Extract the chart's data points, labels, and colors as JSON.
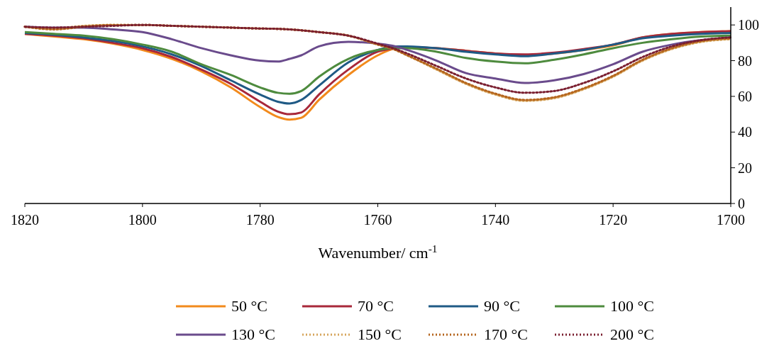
{
  "chart_data": {
    "type": "line",
    "xlabel": "Wavenumber/ cm$^{-1}$",
    "xlim": [
      1820,
      1700
    ],
    "xticks": [
      1820,
      1800,
      1780,
      1760,
      1740,
      1720,
      1700
    ],
    "ylim": [
      0,
      110
    ],
    "yticks": [
      0,
      20,
      40,
      60,
      80,
      100
    ],
    "grid": false,
    "legend": "bottom",
    "x": [
      1820,
      1815,
      1810,
      1805,
      1800,
      1795,
      1790,
      1785,
      1780,
      1777,
      1775,
      1773,
      1770,
      1765,
      1760,
      1757,
      1755,
      1750,
      1745,
      1740,
      1735,
      1730,
      1725,
      1720,
      1715,
      1710,
      1705,
      1700
    ],
    "series": [
      {
        "name": "50 °C",
        "color": "#f28a1c",
        "line_style": "solid",
        "values": [
          95,
          93.5,
          92,
          89.5,
          86,
          81,
          74,
          65,
          54,
          48.5,
          47,
          48,
          58,
          72,
          83,
          87,
          87.5,
          87,
          85.5,
          84,
          83,
          84,
          86,
          88.5,
          93,
          95,
          96,
          96.5
        ]
      },
      {
        "name": "70 °C",
        "color": "#a8283a",
        "line_style": "solid",
        "values": [
          95,
          94,
          92.5,
          90,
          87,
          82,
          75,
          67,
          57,
          51.5,
          50,
          51,
          61,
          75,
          85,
          87,
          87.5,
          87,
          85.5,
          84,
          83.5,
          84.5,
          86.5,
          89,
          93,
          95,
          96,
          96.5
        ]
      },
      {
        "name": "90 °C",
        "color": "#1f5a85",
        "line_style": "solid",
        "values": [
          95.5,
          94.5,
          93,
          91,
          88,
          83.5,
          77,
          69,
          61,
          57,
          56,
          58,
          66,
          79,
          86,
          88,
          88,
          87,
          85,
          83.5,
          82.5,
          84,
          86,
          89,
          92.5,
          94,
          95,
          95.5
        ]
      },
      {
        "name": "100 °C",
        "color": "#4e8b3e",
        "line_style": "solid",
        "values": [
          96,
          95,
          94,
          92,
          89,
          85,
          78,
          72,
          65,
          62,
          61.5,
          63,
          71,
          81,
          86,
          87,
          87,
          85,
          81.5,
          79.5,
          78.5,
          80.5,
          83.5,
          87,
          90,
          92,
          93.5,
          94
        ]
      },
      {
        "name": "130 °C",
        "color": "#6a4b8c",
        "line_style": "solid",
        "values": [
          99,
          98.5,
          98.5,
          97.5,
          96,
          92,
          87,
          83,
          80,
          79.5,
          81,
          83,
          88,
          90.5,
          89.5,
          88,
          86,
          80,
          73,
          70,
          67.5,
          69,
          72.5,
          78,
          85,
          89,
          91.5,
          93
        ]
      },
      {
        "name": "150 °C",
        "color": "#d6a55c",
        "line_style": "dotted",
        "values": [
          99,
          98,
          99.5,
          100,
          100,
          99.5,
          99,
          98.5,
          98,
          97.8,
          97.5,
          97,
          96,
          94,
          89,
          86,
          83,
          75,
          67,
          61,
          57.5,
          59,
          64,
          71,
          80,
          86.5,
          90.5,
          92
        ]
      },
      {
        "name": "170 °C",
        "color": "#b5651d",
        "line_style": "dotted",
        "values": [
          99,
          97.5,
          99,
          100,
          100,
          99.5,
          99,
          98.5,
          98,
          97.8,
          97.5,
          97,
          96,
          94,
          89,
          86,
          83,
          75.5,
          67.5,
          61.5,
          58,
          59.5,
          64.5,
          71.5,
          80.5,
          87,
          91,
          92.5
        ]
      },
      {
        "name": "200 °C",
        "color": "#7a1f30",
        "line_style": "dotted",
        "values": [
          99,
          98.5,
          99,
          99.5,
          100,
          99.5,
          99,
          98.5,
          98,
          97.8,
          97.5,
          97,
          96,
          94,
          89.5,
          86.5,
          84,
          77,
          70,
          65,
          62,
          63,
          67.5,
          74,
          82,
          88,
          91.5,
          93
        ]
      }
    ]
  }
}
